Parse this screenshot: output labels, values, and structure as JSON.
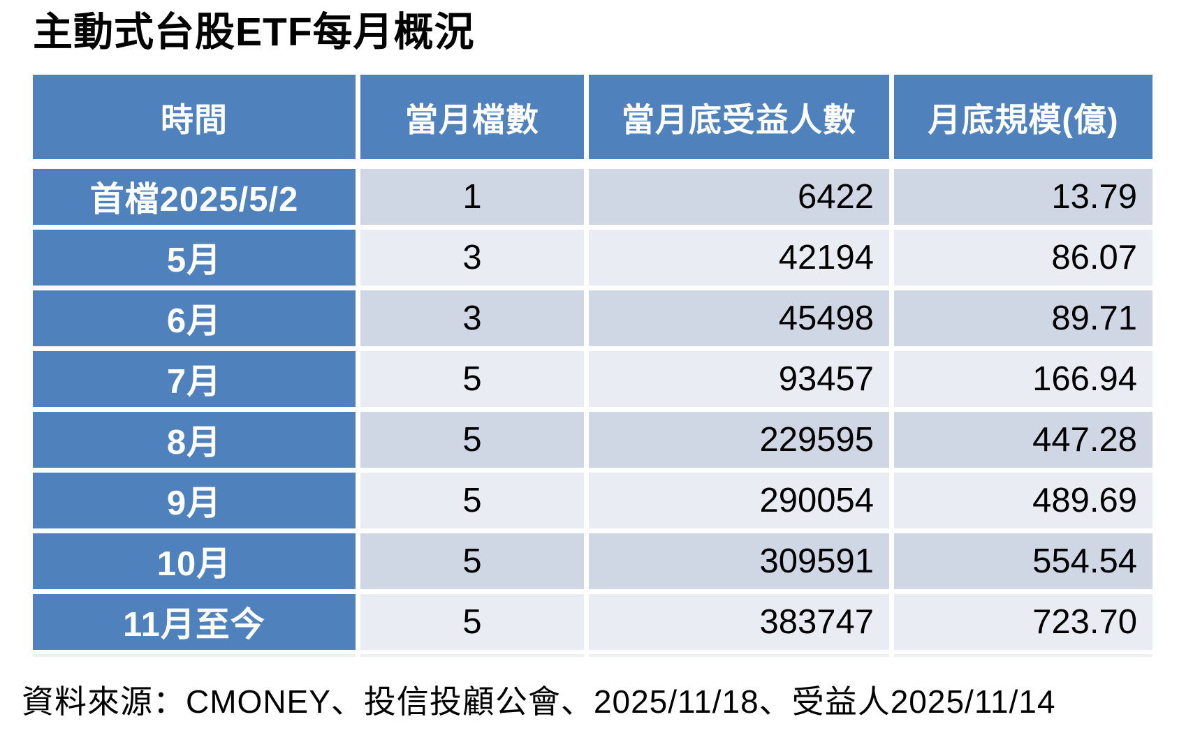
{
  "title": "主動式台股ETF每月概況",
  "source_note": "資料來源：CMONEY、投信投顧公會、2025/11/18、受益人2025/11/14",
  "colors": {
    "header_blue": "#4f81bd",
    "band_dark": "#cfd6e4",
    "band_light": "#e9ecf3",
    "header_text": "#ffffff",
    "body_text": "#000000"
  },
  "table": {
    "headers": [
      "時間",
      "當月檔數",
      "當月底受益人數",
      "月底規模(億)"
    ],
    "rows": [
      [
        "首檔2025/5/2",
        "1",
        "6422",
        "13.79"
      ],
      [
        "5月",
        "3",
        "42194",
        "86.07"
      ],
      [
        "6月",
        "3",
        "45498",
        "89.71"
      ],
      [
        "7月",
        "5",
        "93457",
        "166.94"
      ],
      [
        "8月",
        "5",
        "229595",
        "447.28"
      ],
      [
        "9月",
        "5",
        "290054",
        "489.69"
      ],
      [
        "10月",
        "5",
        "309591",
        "554.54"
      ],
      [
        "11月至今",
        "5",
        "383747",
        "723.70"
      ]
    ]
  },
  "chart_data": {
    "type": "table",
    "title": "主動式台股ETF每月概況",
    "columns": [
      "時間",
      "當月檔數",
      "當月底受益人數",
      "月底規模(億)"
    ],
    "rows": [
      {
        "時間": "首檔2025/5/2",
        "當月檔數": 1,
        "當月底受益人數": 6422,
        "月底規模(億)": 13.79
      },
      {
        "時間": "5月",
        "當月檔數": 3,
        "當月底受益人數": 42194,
        "月底規模(億)": 86.07
      },
      {
        "時間": "6月",
        "當月檔數": 3,
        "當月底受益人數": 45498,
        "月底規模(億)": 89.71
      },
      {
        "時間": "7月",
        "當月檔數": 5,
        "當月底受益人數": 93457,
        "月底規模(億)": 166.94
      },
      {
        "時間": "8月",
        "當月檔數": 5,
        "當月底受益人數": 229595,
        "月底規模(億)": 447.28
      },
      {
        "時間": "9月",
        "當月檔數": 5,
        "當月底受益人數": 290054,
        "月底規模(億)": 489.69
      },
      {
        "時間": "10月",
        "當月檔數": 5,
        "當月底受益人數": 309591,
        "月底規模(億)": 554.54
      },
      {
        "時間": "11月至今",
        "當月檔數": 5,
        "當月底受益人數": 383747,
        "月底規模(億)": 723.7
      }
    ],
    "source": "資料來源：CMONEY、投信投顧公會、2025/11/18、受益人2025/11/14"
  }
}
